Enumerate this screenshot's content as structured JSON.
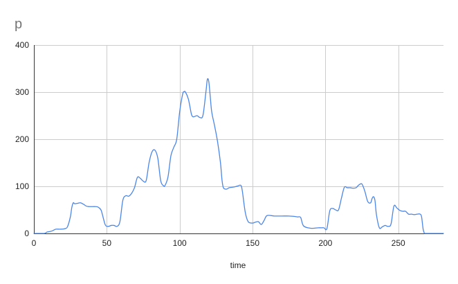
{
  "chart_data": {
    "type": "line",
    "title": "p",
    "xlabel": "time",
    "ylabel": "",
    "xlim": [
      0,
      281
    ],
    "ylim": [
      0,
      400
    ],
    "x_ticks": [
      0,
      50,
      100,
      150,
      200,
      250
    ],
    "y_ticks": [
      0,
      100,
      200,
      300,
      400
    ],
    "grid": true,
    "legend": "none",
    "line_color": "#4a86e8",
    "grid_color": "#cccccc",
    "axis_color": "#333333",
    "series": [
      {
        "x": [
          0,
          7,
          9,
          11,
          13,
          15,
          18,
          21,
          23,
          25,
          26,
          27,
          28,
          30,
          32,
          34,
          36,
          38,
          40,
          42,
          44,
          46,
          47,
          49,
          51,
          53,
          55,
          57,
          59,
          61,
          63,
          65,
          67,
          69,
          71,
          73,
          75,
          77,
          79,
          81,
          83,
          85,
          87,
          89,
          90,
          92,
          94,
          96,
          98,
          100,
          102,
          103,
          104,
          106,
          108,
          109,
          110,
          112,
          114,
          116,
          118,
          119,
          120,
          121,
          122,
          124,
          126,
          128,
          129,
          130,
          132,
          134,
          136,
          138,
          140,
          142,
          143,
          145,
          147,
          150,
          152,
          154,
          156,
          158,
          160,
          165,
          170,
          175,
          179,
          181,
          183,
          185,
          190,
          195,
          197,
          199,
          201,
          203,
          205,
          207,
          209,
          211,
          213,
          215,
          217,
          219,
          221,
          222,
          223,
          225,
          227,
          229,
          231,
          232,
          233,
          234,
          235,
          237,
          239,
          241,
          243,
          245,
          247,
          249,
          251,
          253,
          255,
          257,
          259,
          261,
          263,
          265,
          266,
          267,
          268,
          269,
          270,
          275,
          281
        ],
        "y": [
          0,
          0,
          3,
          4,
          6,
          9,
          9,
          10,
          14,
          35,
          55,
          65,
          63,
          64,
          65,
          62,
          58,
          57,
          57,
          57,
          56,
          50,
          40,
          18,
          15,
          17,
          17,
          15,
          25,
          70,
          80,
          79,
          85,
          97,
          119,
          117,
          111,
          112,
          150,
          173,
          177,
          160,
          112,
          101,
          102,
          120,
          165,
          183,
          200,
          258,
          295,
          301,
          300,
          285,
          254,
          248,
          248,
          250,
          246,
          251,
          300,
          327,
          322,
          290,
          258,
          228,
          195,
          150,
          115,
          97,
          94,
          97,
          98,
          99,
          101,
          102,
          90,
          45,
          25,
          22,
          24,
          25,
          19,
          28,
          38,
          37,
          37,
          37,
          36,
          35,
          34,
          16,
          11,
          12,
          12,
          12,
          10,
          48,
          53,
          50,
          50,
          75,
          98,
          97,
          97,
          96,
          97,
          100,
          103,
          105,
          90,
          68,
          65,
          74,
          78,
          70,
          40,
          12,
          14,
          17,
          15,
          20,
          58,
          54,
          49,
          47,
          47,
          41,
          41,
          40,
          41,
          41,
          35,
          10,
          0,
          0,
          0,
          0,
          0
        ]
      }
    ]
  }
}
